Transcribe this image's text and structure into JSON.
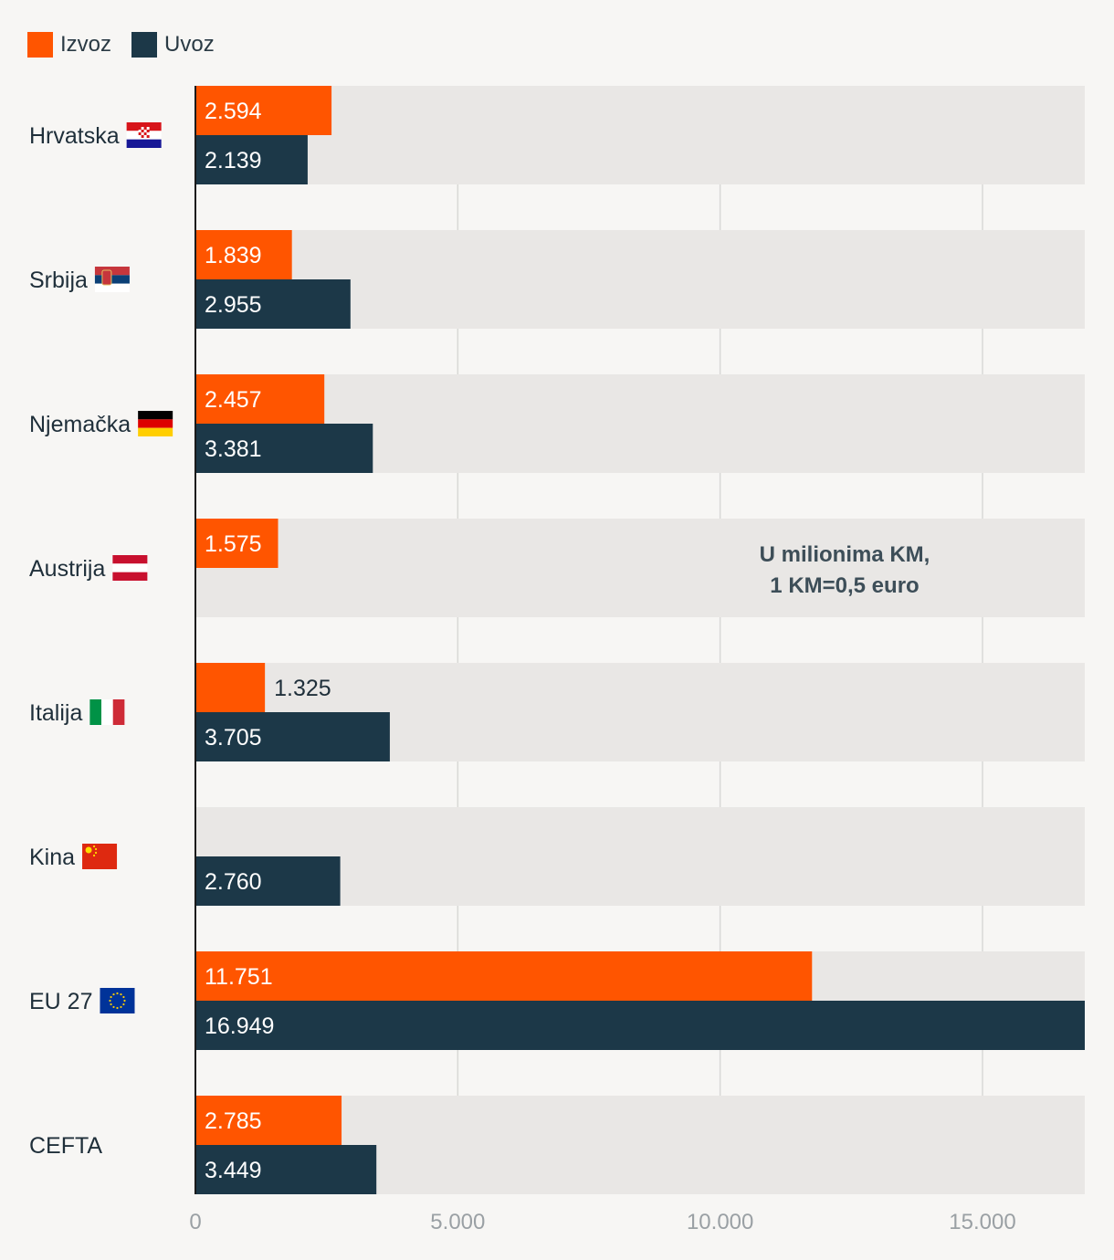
{
  "legend": {
    "export_label": "Izvoz",
    "import_label": "Uvoz"
  },
  "colors": {
    "export": "#ff5500",
    "import": "#1c3848",
    "track": "#e9e7e5",
    "grid": "#d9d8d6",
    "axis": "#1a1a1a",
    "background": "#f7f6f4"
  },
  "chart_data": {
    "type": "bar",
    "orientation": "horizontal",
    "categories": [
      "Hrvatska",
      "Srbija",
      "Njemačka",
      "Austrija",
      "Italija",
      "Kina",
      "EU 27",
      "CEFTA"
    ],
    "category_flags": [
      "croatia-flag-icon",
      "serbia-flag-icon",
      "germany-flag-icon",
      "austria-flag-icon",
      "italy-flag-icon",
      "china-flag-icon",
      "eu-flag-icon",
      null
    ],
    "series": [
      {
        "name": "Izvoz",
        "values": [
          2594,
          1839,
          2457,
          1575,
          1325,
          null,
          11751,
          2785
        ],
        "labels": [
          "2.594",
          "1.839",
          "2.457",
          "1.575",
          "1.325",
          null,
          "11.751",
          "2.785"
        ]
      },
      {
        "name": "Uvoz",
        "values": [
          2139,
          2955,
          3381,
          null,
          3705,
          2760,
          16949,
          3449
        ],
        "labels": [
          "2.139",
          "2.955",
          "3.381",
          null,
          "3.705",
          "2.760",
          "16.949",
          "3.449"
        ]
      }
    ],
    "xlim": [
      0,
      16949
    ],
    "xticks": [
      0,
      5000,
      10000,
      15000
    ],
    "xtick_labels": [
      "0",
      "5.000",
      "10.000",
      "15.000"
    ],
    "annotation": [
      "U milionima KM,",
      "1 KM=0,5 euro"
    ],
    "grid": true
  }
}
